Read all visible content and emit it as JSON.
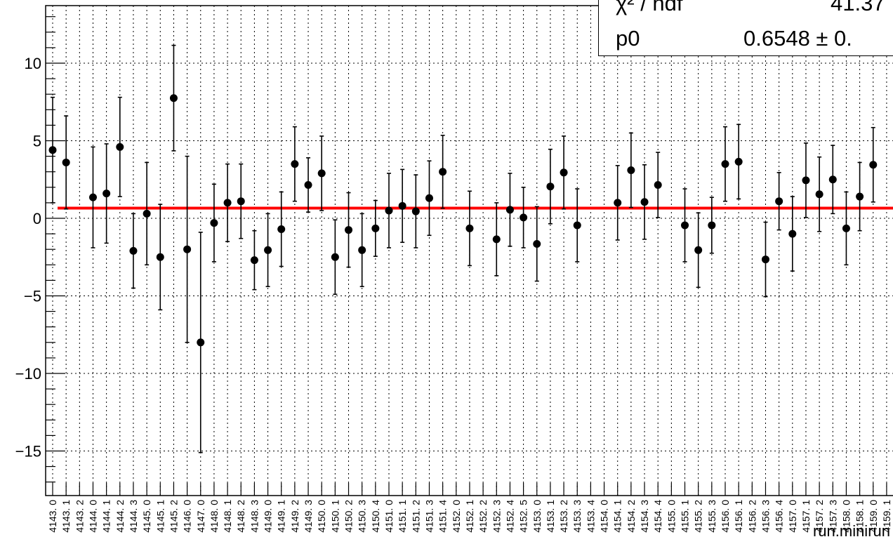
{
  "chart_data": {
    "type": "scatter",
    "xlabel": "run.minirun",
    "ylim": [
      -17.5,
      13.7
    ],
    "y_ticks": [
      "10",
      "5",
      "0",
      "−5",
      "−10",
      "−15"
    ],
    "grid": true,
    "categories": [
      "4143.0",
      "4143.1",
      "4143.2",
      "4144.0",
      "4144.1",
      "4144.2",
      "4144.3",
      "4145.0",
      "4145.1",
      "4145.2",
      "4146.0",
      "4147.0",
      "4148.0",
      "4148.1",
      "4148.2",
      "4148.3",
      "4149.0",
      "4149.1",
      "4149.2",
      "4149.3",
      "4150.0",
      "4150.1",
      "4150.2",
      "4150.3",
      "4150.4",
      "4151.0",
      "4151.1",
      "4151.2",
      "4151.3",
      "4151.4",
      "4152.0",
      "4152.1",
      "4152.2",
      "4152.3",
      "4152.4",
      "4152.5",
      "4153.0",
      "4153.1",
      "4153.2",
      "4153.3",
      "4153.4",
      "4154.0",
      "4154.1",
      "4154.2",
      "4154.3",
      "4154.4",
      "4155.0",
      "4155.1",
      "4155.2",
      "4155.3",
      "4156.0",
      "4156.1",
      "4156.2",
      "4156.3",
      "4156.4",
      "4157.0",
      "4157.1",
      "4157.2",
      "4157.3",
      "4158.0",
      "4158.1",
      "4159.0",
      "4159.1"
    ],
    "points": [
      {
        "x": "4143.0",
        "y": 4.4,
        "err": 3.4
      },
      {
        "x": "4143.1",
        "y": 3.6,
        "err": 3.0
      },
      {
        "x": "4144.0",
        "y": 1.35,
        "err": 3.25
      },
      {
        "x": "4144.1",
        "y": 1.6,
        "err": 3.2
      },
      {
        "x": "4144.2",
        "y": 4.6,
        "err": 3.2
      },
      {
        "x": "4144.3",
        "y": -2.1,
        "err": 2.4
      },
      {
        "x": "4145.0",
        "y": 0.3,
        "err": 3.3
      },
      {
        "x": "4145.1",
        "y": -2.5,
        "err": 3.4
      },
      {
        "x": "4145.2",
        "y": 7.75,
        "err": 3.4
      },
      {
        "x": "4146.0",
        "y": -2.0,
        "err": 6.0
      },
      {
        "x": "4147.0",
        "y": -8.0,
        "err": 7.1
      },
      {
        "x": "4148.0",
        "y": -0.3,
        "err": 2.5
      },
      {
        "x": "4148.1",
        "y": 1.0,
        "err": 2.5
      },
      {
        "x": "4148.2",
        "y": 1.1,
        "err": 2.4
      },
      {
        "x": "4148.3",
        "y": -2.7,
        "err": 1.9
      },
      {
        "x": "4149.0",
        "y": -2.05,
        "err": 2.35
      },
      {
        "x": "4149.1",
        "y": -0.7,
        "err": 2.4
      },
      {
        "x": "4149.2",
        "y": 3.5,
        "err": 2.4
      },
      {
        "x": "4149.3",
        "y": 2.15,
        "err": 1.75
      },
      {
        "x": "4150.0",
        "y": 2.9,
        "err": 2.4
      },
      {
        "x": "4150.1",
        "y": -2.5,
        "err": 2.4
      },
      {
        "x": "4150.2",
        "y": -0.75,
        "err": 2.4
      },
      {
        "x": "4150.3",
        "y": -2.05,
        "err": 2.35
      },
      {
        "x": "4150.4",
        "y": -0.65,
        "err": 1.8
      },
      {
        "x": "4151.0",
        "y": 0.5,
        "err": 2.4
      },
      {
        "x": "4151.1",
        "y": 0.8,
        "err": 2.35
      },
      {
        "x": "4151.2",
        "y": 0.45,
        "err": 2.35
      },
      {
        "x": "4151.3",
        "y": 1.3,
        "err": 2.4
      },
      {
        "x": "4151.4",
        "y": 3.0,
        "err": 2.35
      },
      {
        "x": "4152.1",
        "y": -0.65,
        "err": 2.4
      },
      {
        "x": "4152.3",
        "y": -1.35,
        "err": 2.35
      },
      {
        "x": "4152.4",
        "y": 0.55,
        "err": 2.35
      },
      {
        "x": "4152.5",
        "y": 0.05,
        "err": 1.95
      },
      {
        "x": "4153.0",
        "y": -1.65,
        "err": 2.4
      },
      {
        "x": "4153.1",
        "y": 2.05,
        "err": 2.4
      },
      {
        "x": "4153.2",
        "y": 2.95,
        "err": 2.35
      },
      {
        "x": "4153.3",
        "y": -0.45,
        "err": 2.35
      },
      {
        "x": "4154.1",
        "y": 1.0,
        "err": 2.4
      },
      {
        "x": "4154.2",
        "y": 3.1,
        "err": 2.4
      },
      {
        "x": "4154.3",
        "y": 1.05,
        "err": 2.4
      },
      {
        "x": "4154.4",
        "y": 2.15,
        "err": 2.1
      },
      {
        "x": "4155.1",
        "y": -0.45,
        "err": 2.35
      },
      {
        "x": "4155.2",
        "y": -2.05,
        "err": 2.4
      },
      {
        "x": "4155.3",
        "y": -0.45,
        "err": 1.8
      },
      {
        "x": "4156.0",
        "y": 3.5,
        "err": 2.4
      },
      {
        "x": "4156.1",
        "y": 3.65,
        "err": 2.4
      },
      {
        "x": "4156.3",
        "y": -2.65,
        "err": 2.4
      },
      {
        "x": "4156.4",
        "y": 1.1,
        "err": 1.85
      },
      {
        "x": "4157.0",
        "y": -1.0,
        "err": 2.4
      },
      {
        "x": "4157.1",
        "y": 2.45,
        "err": 2.4
      },
      {
        "x": "4157.2",
        "y": 1.55,
        "err": 2.4
      },
      {
        "x": "4157.3",
        "y": 2.5,
        "err": 2.2
      },
      {
        "x": "4158.0",
        "y": -0.65,
        "err": 2.35
      },
      {
        "x": "4158.1",
        "y": 1.4,
        "err": 2.2
      },
      {
        "x": "4159.0",
        "y": 3.45,
        "err": 2.4
      }
    ],
    "fit": {
      "type": "constant",
      "value": 0.6548,
      "color": "#ff0000"
    },
    "marker_color": "#000000",
    "stats": [
      {
        "name": "χ² / ndf",
        "value": "41.37"
      },
      {
        "name": "p0",
        "value": "0.6548 ± 0."
      }
    ]
  }
}
